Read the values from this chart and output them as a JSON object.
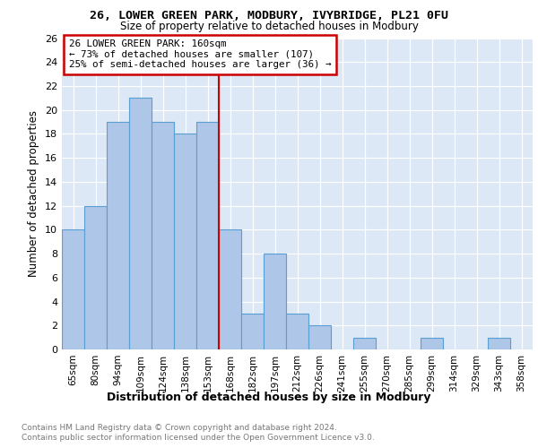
{
  "title1": "26, LOWER GREEN PARK, MODBURY, IVYBRIDGE, PL21 0FU",
  "title2": "Size of property relative to detached houses in Modbury",
  "xlabel": "Distribution of detached houses by size in Modbury",
  "ylabel": "Number of detached properties",
  "categories": [
    "65sqm",
    "80sqm",
    "94sqm",
    "109sqm",
    "124sqm",
    "138sqm",
    "153sqm",
    "168sqm",
    "182sqm",
    "197sqm",
    "212sqm",
    "226sqm",
    "241sqm",
    "255sqm",
    "270sqm",
    "285sqm",
    "299sqm",
    "314sqm",
    "329sqm",
    "343sqm",
    "358sqm"
  ],
  "values": [
    10,
    12,
    19,
    21,
    19,
    18,
    19,
    10,
    3,
    8,
    3,
    2,
    0,
    1,
    0,
    0,
    1,
    0,
    0,
    1,
    0
  ],
  "bar_color": "#aec6e8",
  "bar_edgecolor": "#5a9fd4",
  "vline_color": "#cc0000",
  "annotation_title": "26 LOWER GREEN PARK: 160sqm",
  "annotation_line1": "← 73% of detached houses are smaller (107)",
  "annotation_line2": "25% of semi-detached houses are larger (36) →",
  "annotation_box_edgecolor": "#cc0000",
  "ylim": [
    0,
    26
  ],
  "yticks": [
    0,
    2,
    4,
    6,
    8,
    10,
    12,
    14,
    16,
    18,
    20,
    22,
    24,
    26
  ],
  "footer1": "Contains HM Land Registry data © Crown copyright and database right 2024.",
  "footer2": "Contains public sector information licensed under the Open Government Licence v3.0.",
  "bg_color": "#dce8f5",
  "fig_bg_color": "#ffffff"
}
